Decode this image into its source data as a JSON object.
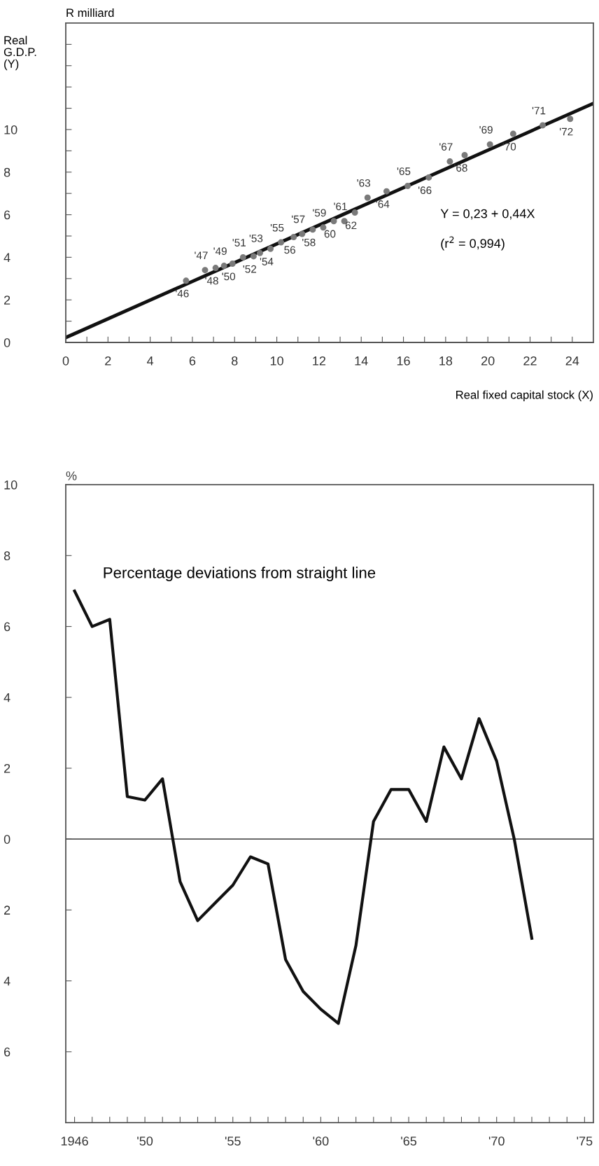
{
  "chart_data": [
    {
      "type": "scatter",
      "ylabel": "Real\nG.D.P.\n(Y)",
      "xlabel": "Real fixed capital stock (X)",
      "annotations": [
        "R milliard",
        "Y = 0,23 + 0,44X",
        "(r$^{2}$ = 0,994)",
        {
          "text": "'46",
          "x": 5.7,
          "y": 2.9
        },
        {
          "text": "'47",
          "x": 6.6,
          "y": 3.4
        },
        {
          "text": "'48",
          "x": 7.1,
          "y": 3.5
        },
        {
          "text": "'49",
          "x": 7.5,
          "y": 3.6
        },
        {
          "text": "'50",
          "x": 7.9,
          "y": 3.7
        },
        {
          "text": "'51",
          "x": 8.4,
          "y": 4.0
        },
        {
          "text": "'52",
          "x": 8.9,
          "y": 4.05
        },
        {
          "text": "'53",
          "x": 9.2,
          "y": 4.2
        },
        {
          "text": "'54",
          "x": 9.7,
          "y": 4.4
        },
        {
          "text": "'55",
          "x": 10.2,
          "y": 4.7
        },
        {
          "text": "56",
          "x": 10.8,
          "y": 4.95
        },
        {
          "text": "'57",
          "x": 11.2,
          "y": 5.1
        },
        {
          "text": "'58",
          "x": 11.7,
          "y": 5.3
        },
        {
          "text": "'59",
          "x": 12.2,
          "y": 5.4
        },
        {
          "text": "60",
          "x": 12.7,
          "y": 5.7
        },
        {
          "text": "'61",
          "x": 13.2,
          "y": 5.7
        },
        {
          "text": "62",
          "x": 13.7,
          "y": 6.1
        },
        {
          "text": "'63",
          "x": 14.3,
          "y": 6.8
        },
        {
          "text": "'64",
          "x": 15.2,
          "y": 7.1
        },
        {
          "text": "'65",
          "x": 16.2,
          "y": 7.35
        },
        {
          "text": "'66",
          "x": 17.2,
          "y": 7.75
        },
        {
          "text": "'67",
          "x": 18.2,
          "y": 8.5
        },
        {
          "text": "'68",
          "x": 18.9,
          "y": 8.8
        },
        {
          "text": "'69",
          "x": 20.1,
          "y": 9.3
        },
        {
          "text": "'70",
          "x": 21.2,
          "y": 9.8
        },
        {
          "text": "'71",
          "x": 22.6,
          "y": 10.2
        },
        {
          "text": "'72",
          "x": 23.9,
          "y": 10.5
        }
      ],
      "xlim": [
        0,
        25
      ],
      "ylim": [
        0,
        15
      ],
      "xticks": [
        0,
        {
          "value": 1,
          "label": null
        },
        2,
        {
          "value": 3,
          "label": null
        },
        4,
        {
          "value": 5,
          "label": null
        },
        6,
        {
          "value": 7,
          "label": null
        },
        8,
        {
          "value": 9,
          "label": null
        },
        10,
        {
          "value": 11,
          "label": null
        },
        12,
        {
          "value": 13,
          "label": null
        },
        14,
        {
          "value": 15,
          "label": null
        },
        16,
        {
          "value": 17,
          "label": null
        },
        18,
        {
          "value": 19,
          "label": null
        },
        20,
        {
          "value": 21,
          "label": null
        },
        22,
        {
          "value": 23,
          "label": null
        },
        24
      ],
      "yticks": [
        0,
        {
          "value": 1,
          "label": null
        },
        2,
        {
          "value": 3,
          "label": null
        },
        4,
        {
          "value": 5,
          "label": null
        },
        6,
        {
          "value": 7,
          "label": null
        },
        8,
        {
          "value": 9,
          "label": null
        },
        10,
        {
          "value": 11,
          "label": null
        },
        {
          "value": 12,
          "label": null
        },
        {
          "value": 13,
          "label": null
        },
        {
          "value": 14,
          "label": null
        }
      ],
      "grid": false,
      "legend": false,
      "series": [
        {
          "color": "#7a7a7a",
          "marker": "circle",
          "x": [
            5.7,
            6.6,
            7.1,
            7.5,
            7.9,
            8.4,
            8.9,
            9.2,
            9.7,
            10.2,
            10.8,
            11.2,
            11.7,
            12.2,
            12.7,
            13.2,
            13.7,
            14.3,
            15.2,
            16.2,
            17.2,
            18.2,
            18.9,
            20.1,
            21.2,
            22.6,
            23.9
          ],
          "values": [
            2.9,
            3.4,
            3.5,
            3.6,
            3.7,
            4.0,
            4.05,
            4.2,
            4.4,
            4.7,
            4.95,
            5.1,
            5.3,
            5.4,
            5.7,
            5.7,
            6.1,
            6.8,
            7.1,
            7.35,
            7.75,
            8.5,
            8.8,
            9.3,
            9.8,
            10.2,
            10.5
          ]
        },
        {
          "type": "line",
          "color": "#111111",
          "line_style": "solid",
          "marker": "none",
          "x": [
            0,
            25
          ],
          "values": [
            0.23,
            11.23
          ]
        }
      ]
    },
    {
      "type": "line",
      "ylabel": "%",
      "title": "Percentage deviations from straight line",
      "xlim": [
        1945.5,
        1975.5
      ],
      "ylim": [
        -8,
        10
      ],
      "xticks": [
        {
          "value": 1946,
          "label": "1946"
        },
        {
          "value": 1947,
          "label": null
        },
        {
          "value": 1948,
          "label": null
        },
        {
          "value": 1949,
          "label": null
        },
        {
          "value": 1950,
          "label": "'50"
        },
        {
          "value": 1951,
          "label": null
        },
        {
          "value": 1952,
          "label": null
        },
        {
          "value": 1953,
          "label": null
        },
        {
          "value": 1954,
          "label": null
        },
        {
          "value": 1955,
          "label": "'55"
        },
        {
          "value": 1956,
          "label": null
        },
        {
          "value": 1957,
          "label": null
        },
        {
          "value": 1958,
          "label": null
        },
        {
          "value": 1959,
          "label": null
        },
        {
          "value": 1960,
          "label": "'60"
        },
        {
          "value": 1961,
          "label": null
        },
        {
          "value": 1962,
          "label": null
        },
        {
          "value": 1963,
          "label": null
        },
        {
          "value": 1964,
          "label": null
        },
        {
          "value": 1965,
          "label": "'65"
        },
        {
          "value": 1966,
          "label": null
        },
        {
          "value": 1967,
          "label": null
        },
        {
          "value": 1968,
          "label": null
        },
        {
          "value": 1969,
          "label": null
        },
        {
          "value": 1970,
          "label": "'70"
        },
        {
          "value": 1971,
          "label": null
        },
        {
          "value": 1972,
          "label": null
        },
        {
          "value": 1973,
          "label": null
        },
        {
          "value": 1974,
          "label": null
        },
        {
          "value": 1975,
          "label": "'75"
        }
      ],
      "yticks": [
        {
          "value": -6,
          "label": "6"
        },
        {
          "value": -4,
          "label": "4"
        },
        {
          "value": -2,
          "label": "2"
        },
        0,
        2,
        4,
        6,
        8,
        10
      ],
      "grid": false,
      "legend": false,
      "ref_lines": [
        {
          "axis": "y",
          "value": 0,
          "color": "#555555"
        }
      ],
      "series": [
        {
          "color": "#111111",
          "line_style": "solid",
          "marker": "none",
          "x": [
            1946,
            1947,
            1948,
            1949,
            1950,
            1951,
            1952,
            1953,
            1954,
            1955,
            1956,
            1957,
            1958,
            1959,
            1960,
            1961,
            1962,
            1963,
            1964,
            1965,
            1966,
            1967,
            1968,
            1969,
            1970,
            1971,
            1972
          ],
          "values": [
            7.0,
            6.0,
            6.2,
            1.2,
            1.1,
            1.7,
            -1.2,
            -2.3,
            -1.8,
            -1.3,
            -0.5,
            -0.7,
            -3.4,
            -4.3,
            -4.8,
            -5.2,
            -3.0,
            0.5,
            1.4,
            1.4,
            0.5,
            2.6,
            1.7,
            3.4,
            2.2,
            0.0,
            -2.8
          ]
        }
      ]
    }
  ]
}
